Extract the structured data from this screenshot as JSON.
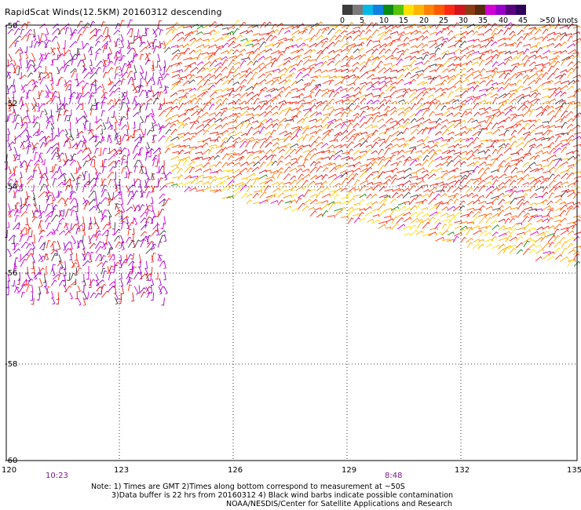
{
  "title": "RapidScat Winds(12.5KM) 20160312 descending",
  "legend": {
    "colors": [
      "#3c3c3c",
      "#7a7a7a",
      "#00b9e6",
      "#0f7fe0",
      "#0a8c14",
      "#55c40a",
      "#ffe100",
      "#ffb400",
      "#ff8200",
      "#ff5a00",
      "#ff2a14",
      "#d2141e",
      "#8a3c14",
      "#5a2a10",
      "#d200d2",
      "#9600c8",
      "#5a007d",
      "#2d005a"
    ],
    "labels": [
      "0",
      "5",
      "10",
      "15",
      "20",
      "25",
      "30",
      "35",
      "40",
      "45",
      ">50 knots"
    ]
  },
  "lat_labels": [
    "-50",
    "-52",
    "-54",
    "-56",
    "-58",
    "-60"
  ],
  "lon_labels": [
    "120",
    "123",
    "126",
    "129",
    "132",
    "135"
  ],
  "times": {
    "left": "10:23",
    "right": "8:48",
    "color": "#7a1a8a"
  },
  "notes": {
    "line1": "Note: 1) Times are GMT 2)Times along bottom correspond to measurement at ~50S",
    "line2": "3)Data buffer is 22 hrs from 20160312 4) Black wind barbs indicate possible contamination",
    "line3": "NOAA/NESDIS/Center for Satellite Applications and Research"
  }
}
